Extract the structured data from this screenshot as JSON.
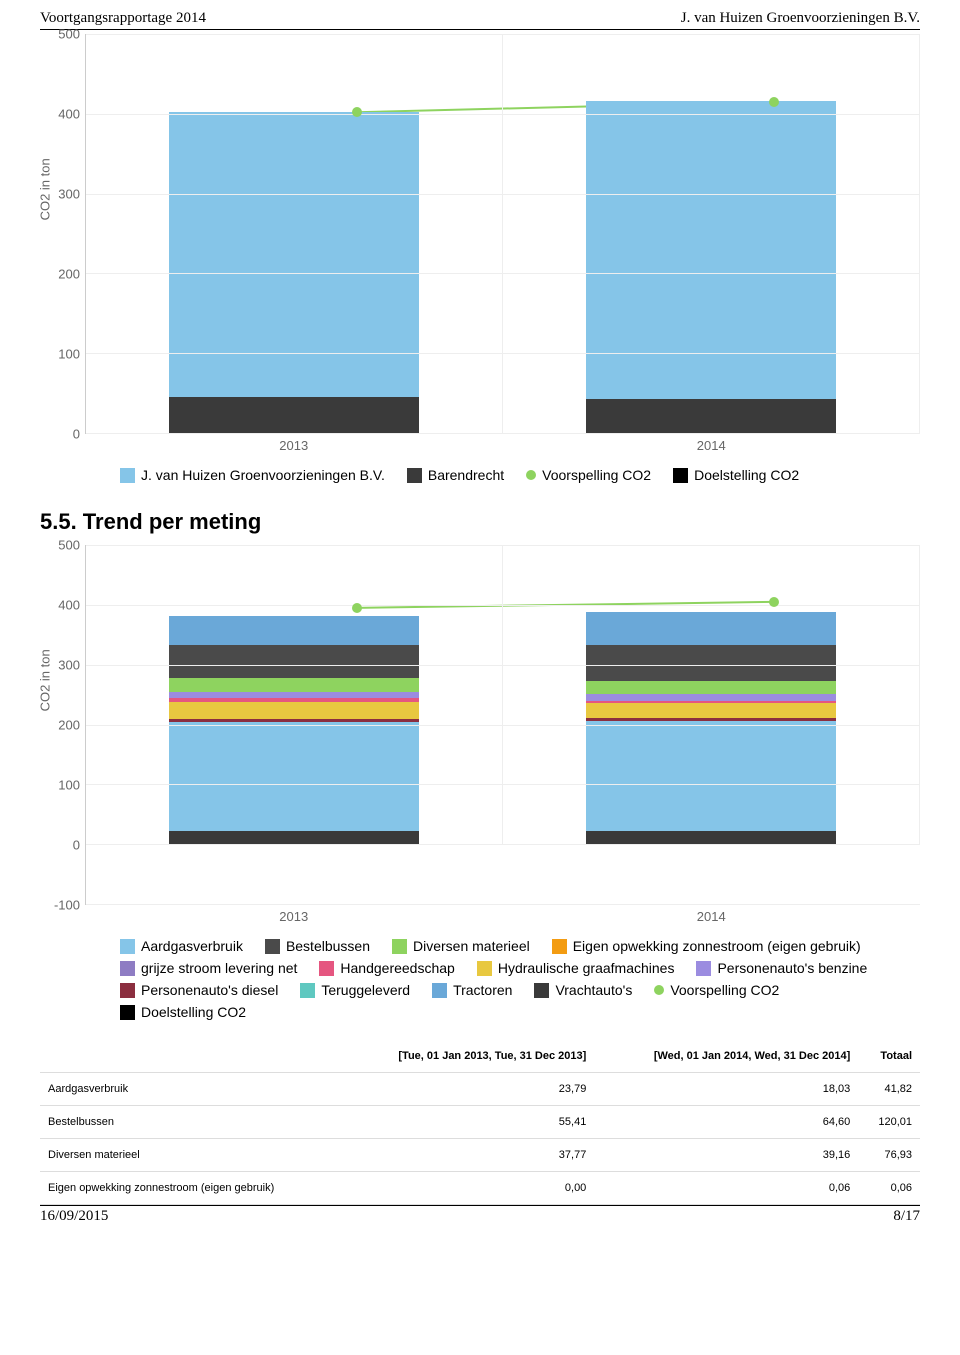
{
  "header": {
    "left": "Voortgangsrapportage 2014",
    "right": "J. van Huizen Groenvoorzieningen B.V."
  },
  "colors": {
    "lightblue": "#85c5e8",
    "darkgrey": "#3a3a3a",
    "green": "#8ed35f",
    "orange": "#f39c12",
    "purple": "#8e7cc3",
    "pink": "#e55680",
    "yellow": "#e8c840",
    "violet": "#9b8ce0",
    "darkred": "#8b2e3f",
    "teal": "#5fc8c0",
    "mediumblue": "#6aa8d8",
    "chargrey": "#4a4a4a",
    "linegreen": "#8ed35f",
    "black": "#000000"
  },
  "chart1": {
    "ylabel": "CO2 in ton",
    "ymax": 500,
    "yticks": [
      0,
      100,
      200,
      300,
      400,
      500
    ],
    "categories": [
      "2013",
      "2014"
    ],
    "bars": [
      {
        "segments": [
          {
            "color": "darkgrey",
            "v": 45
          },
          {
            "color": "lightblue",
            "v": 356
          }
        ]
      },
      {
        "segments": [
          {
            "color": "darkgrey",
            "v": 43
          },
          {
            "color": "lightblue",
            "v": 372
          }
        ]
      }
    ],
    "line_points": [
      402,
      415
    ],
    "legend": [
      {
        "type": "sw",
        "color": "lightblue",
        "label": "J. van Huizen Groenvoorzieningen B.V."
      },
      {
        "type": "sw",
        "color": "darkgrey",
        "label": "Barendrecht"
      },
      {
        "type": "dot",
        "color": "linegreen",
        "label": "Voorspelling CO2"
      },
      {
        "type": "sw",
        "color": "black",
        "label": "Doelstelling CO2"
      }
    ]
  },
  "section_title": "5.5. Trend per meting",
  "chart2": {
    "ylabel": "CO2 in ton",
    "ymin": -100,
    "ymax": 500,
    "yticks": [
      -100,
      0,
      100,
      200,
      300,
      400,
      500
    ],
    "categories": [
      "2013",
      "2014"
    ],
    "bars": [
      {
        "segments": [
          {
            "color": "darkgrey",
            "v": 22
          },
          {
            "color": "lightblue",
            "v": 182
          },
          {
            "color": "darkred",
            "v": 5
          },
          {
            "color": "yellow",
            "v": 28
          },
          {
            "color": "pink",
            "v": 7
          },
          {
            "color": "violet",
            "v": 9
          },
          {
            "color": "green",
            "v": 24
          },
          {
            "color": "chargrey",
            "v": 55
          },
          {
            "color": "mediumblue",
            "v": 48
          }
        ]
      },
      {
        "segments": [
          {
            "color": "darkgrey",
            "v": 22
          },
          {
            "color": "lightblue",
            "v": 184
          },
          {
            "color": "darkred",
            "v": 4
          },
          {
            "color": "yellow",
            "v": 26
          },
          {
            "color": "pink",
            "v": 2
          },
          {
            "color": "violet",
            "v": 12
          },
          {
            "color": "green",
            "v": 22
          },
          {
            "color": "chargrey",
            "v": 60
          },
          {
            "color": "mediumblue",
            "v": 55
          }
        ]
      }
    ],
    "line_points": [
      395,
      405
    ],
    "legend": [
      {
        "type": "sw",
        "color": "lightblue",
        "label": "Aardgasverbruik"
      },
      {
        "type": "sw",
        "color": "chargrey",
        "label": "Bestelbussen"
      },
      {
        "type": "sw",
        "color": "green",
        "label": "Diversen materieel"
      },
      {
        "type": "sw",
        "color": "orange",
        "label": "Eigen opwekking zonnestroom (eigen gebruik)"
      },
      {
        "type": "sw",
        "color": "purple",
        "label": "grijze stroom levering net"
      },
      {
        "type": "sw",
        "color": "pink",
        "label": "Handgereedschap"
      },
      {
        "type": "sw",
        "color": "yellow",
        "label": "Hydraulische graafmachines"
      },
      {
        "type": "sw",
        "color": "violet",
        "label": "Personenauto's benzine"
      },
      {
        "type": "sw",
        "color": "darkred",
        "label": "Personenauto's diesel"
      },
      {
        "type": "sw",
        "color": "teal",
        "label": "Teruggeleverd"
      },
      {
        "type": "sw",
        "color": "mediumblue",
        "label": "Tractoren"
      },
      {
        "type": "sw",
        "color": "darkgrey",
        "label": "Vrachtauto's"
      },
      {
        "type": "dot",
        "color": "linegreen",
        "label": "Voorspelling CO2"
      },
      {
        "type": "sw",
        "color": "black",
        "label": "Doelstelling CO2"
      }
    ]
  },
  "table": {
    "columns": [
      "",
      "[Tue, 01 Jan 2013, Tue, 31 Dec 2013]",
      "[Wed, 01 Jan 2014, Wed, 31 Dec 2014]",
      "Totaal"
    ],
    "rows": [
      [
        "Aardgasverbruik",
        "23,79",
        "18,03",
        "41,82"
      ],
      [
        "Bestelbussen",
        "55,41",
        "64,60",
        "120,01"
      ],
      [
        "Diversen materieel",
        "37,77",
        "39,16",
        "76,93"
      ],
      [
        "Eigen opwekking zonnestroom (eigen gebruik)",
        "0,00",
        "0,06",
        "0,06"
      ]
    ]
  },
  "footer": {
    "left": "16/09/2015",
    "right": "8/17"
  }
}
